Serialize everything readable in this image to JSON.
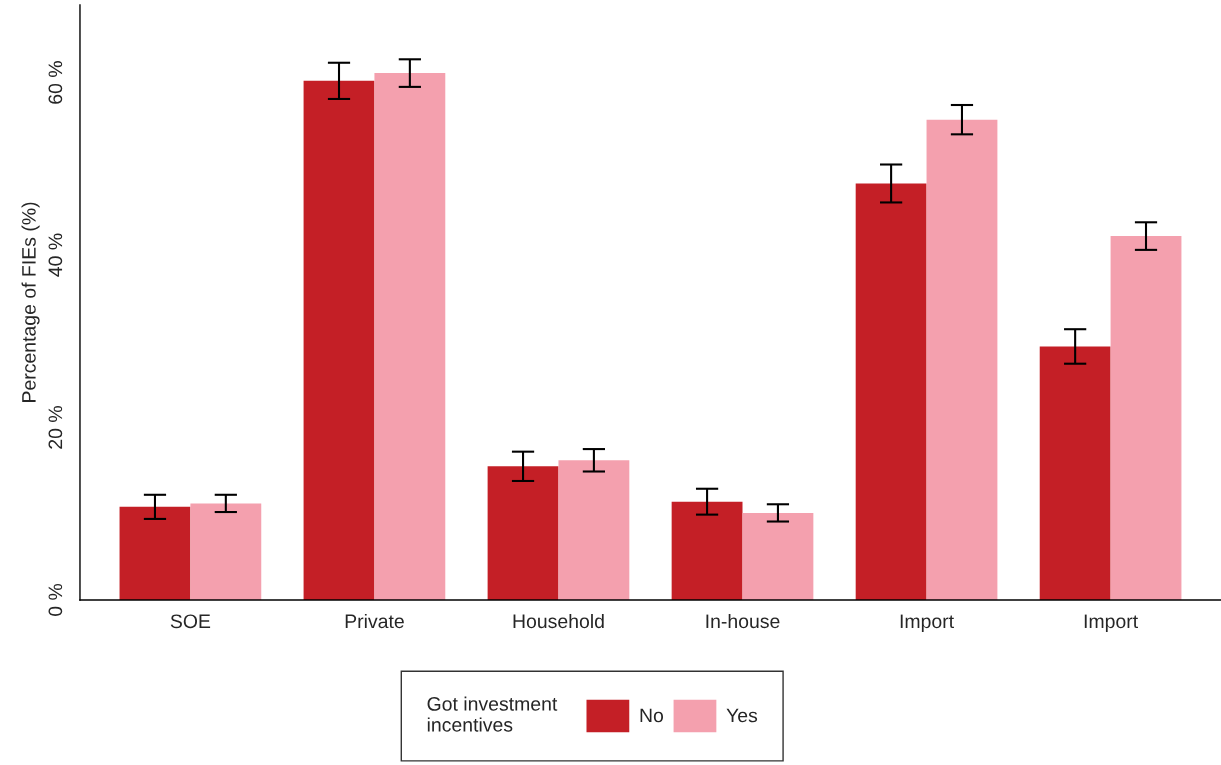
{
  "chart_data": {
    "type": "bar",
    "ylabel": "Percentage of FIEs (%)",
    "legend_title": "Got investment\nincentives",
    "categories": [
      "SOE",
      "Private",
      "Household",
      "In-house",
      "Import",
      "Import"
    ],
    "series": [
      {
        "name": "No",
        "color": "#c41f26",
        "values": [
          10.8,
          60.2,
          15.5,
          11.4,
          48.3,
          29.4
        ],
        "errors": [
          1.4,
          2.1,
          1.7,
          1.5,
          2.2,
          2.0
        ]
      },
      {
        "name": "Yes",
        "color": "#f4a0ae",
        "values": [
          11.2,
          61.1,
          16.2,
          10.1,
          55.7,
          42.2
        ],
        "errors": [
          1.0,
          1.6,
          1.3,
          1.0,
          1.7,
          1.6
        ]
      }
    ],
    "ylim": [
      0,
      69
    ],
    "yticks": [
      {
        "value": 0,
        "label": "0 %"
      },
      {
        "value": 20,
        "label": "20 %"
      },
      {
        "value": 40,
        "label": "40 %"
      },
      {
        "value": 60,
        "label": "60 %"
      }
    ],
    "legend": "bottom"
  }
}
